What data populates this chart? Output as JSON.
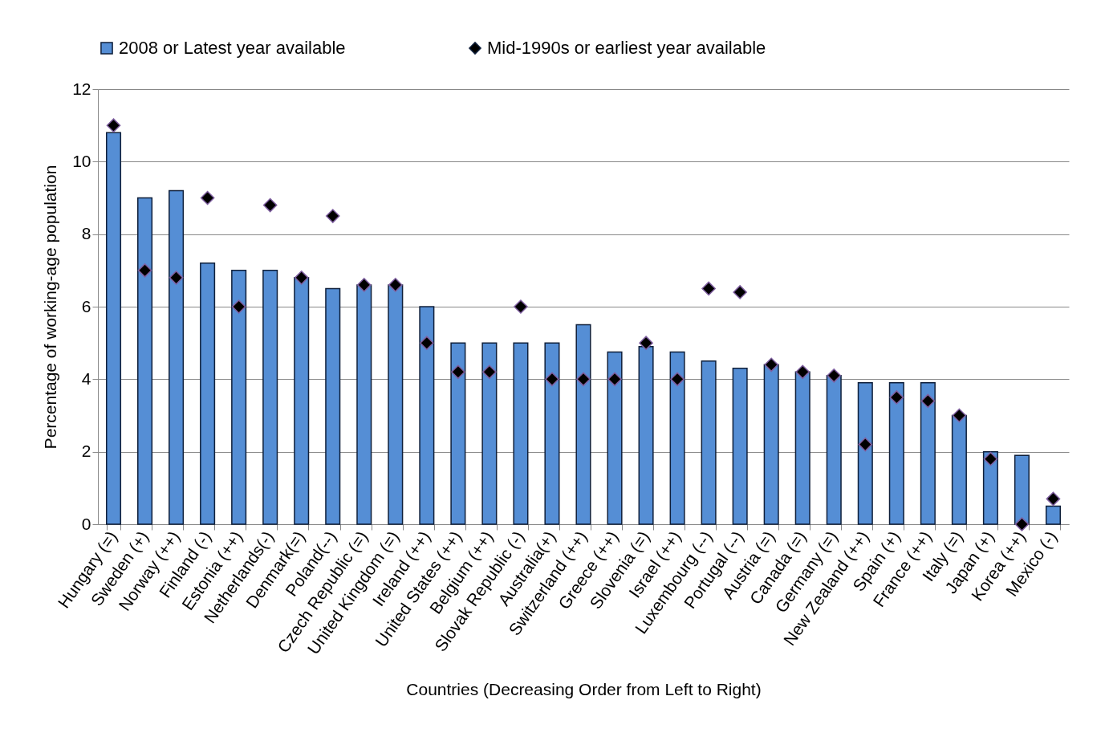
{
  "chart_data": {
    "type": "bar",
    "xlabel": "Countries  (Decreasing Order from Left  to Right)",
    "ylabel": "Percentage of working-age population",
    "categories": [
      "Hungary (=)",
      "Sweden (+)",
      "Norway (++)",
      "Finland (-)",
      "Estonia (++)",
      "Netherlands(-)",
      "Denmark(=)",
      "Poland(--)",
      "Czech Republic (=)",
      "United Kingdom (=)",
      "Ireland (++)",
      "United States (++)",
      "Belgium (++)",
      "Slovak Republic (-)",
      "Australia(+)",
      "Switzerland (++)",
      "Greece (++)",
      "Slovenia (=)",
      "Israel (++)",
      "Luxembourg (--)",
      "Portugal (--)",
      "Austria (=)",
      "Canada (=)",
      "Germany (=)",
      "New Zealand (++)",
      "Spain (+)",
      "France (++)",
      "Italy (=)",
      "Japan (+)",
      "Korea (++)",
      "Mexico (-)"
    ],
    "series": [
      {
        "name": "2008 or Latest year available",
        "color": "#558ed5",
        "values": [
          10.8,
          9.0,
          9.2,
          7.2,
          7.0,
          7.0,
          6.8,
          6.5,
          6.6,
          6.6,
          6.0,
          5.0,
          5.0,
          5.0,
          5.0,
          5.5,
          4.75,
          4.9,
          4.75,
          4.5,
          4.3,
          4.4,
          4.2,
          4.1,
          3.9,
          3.9,
          3.9,
          3.0,
          2.0,
          1.9,
          0.5
        ]
      },
      {
        "name": "Mid-1990s or earliest year available",
        "type": "scatter",
        "color": "#000000",
        "values": [
          11.0,
          7.0,
          6.8,
          9.0,
          6.0,
          8.8,
          6.8,
          8.5,
          6.6,
          6.6,
          5.0,
          4.2,
          4.2,
          6.0,
          4.0,
          4.0,
          4.0,
          5.0,
          4.0,
          6.5,
          6.4,
          4.4,
          4.2,
          4.1,
          2.2,
          3.5,
          3.4,
          3.0,
          1.8,
          0.0,
          0.7
        ]
      }
    ],
    "ylim": [
      0,
      12
    ],
    "yticks": [
      0,
      2,
      4,
      6,
      8,
      10,
      12
    ],
    "grid": "y",
    "legend": "top",
    "marker": "diamond"
  }
}
